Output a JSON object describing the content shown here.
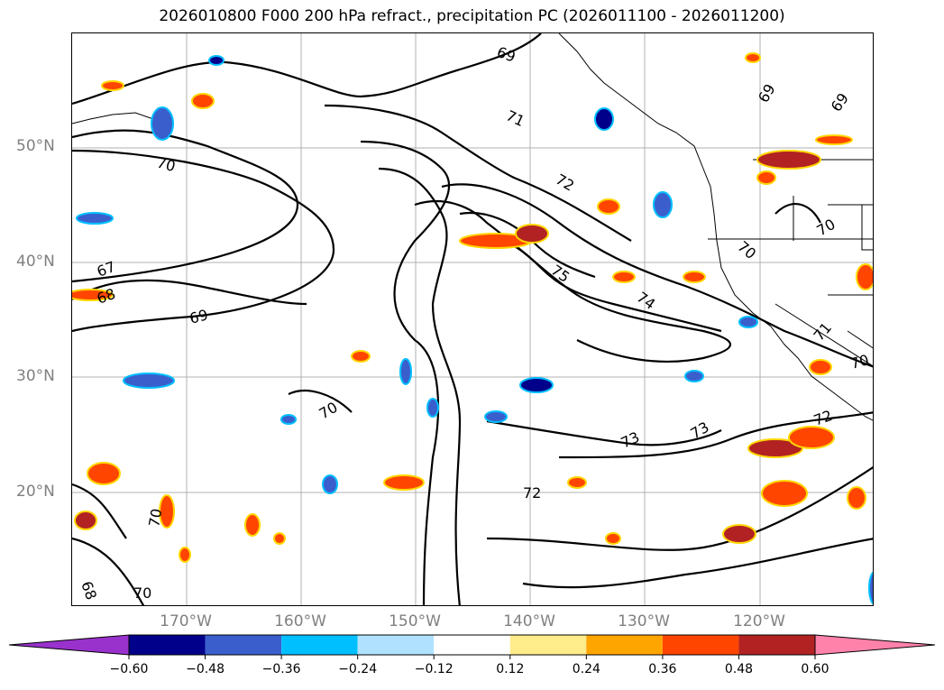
{
  "title": "2026010800 F000 200 hPa refract., precipitation PC (2026011100 - 2026011200)",
  "latitude_labels": [
    "50°N",
    "40°N",
    "30°N",
    "20°N"
  ],
  "longitude_labels": [
    "170°W",
    "160°W",
    "150°W",
    "140°W",
    "130°W",
    "120°W"
  ],
  "contour_labels": [
    "69",
    "71",
    "72",
    "75",
    "74",
    "70",
    "69",
    "70",
    "67",
    "68",
    "69",
    "70",
    "73",
    "73",
    "72",
    "72",
    "70",
    "70",
    "70",
    "71",
    "70",
    "69",
    "68"
  ],
  "colorbar": {
    "ticks": [
      "−0.60",
      "−0.48",
      "−0.36",
      "−0.24",
      "−0.12",
      "0.12",
      "0.24",
      "0.36",
      "0.48",
      "0.60"
    ],
    "colors": [
      "#9932cc",
      "#00008b",
      "#3a5fcd",
      "#00bfff",
      "#b0e2ff",
      "#ffffff",
      "#ffec8b",
      "#ffa500",
      "#ff4500",
      "#b22222",
      "#ff82ab"
    ]
  }
}
